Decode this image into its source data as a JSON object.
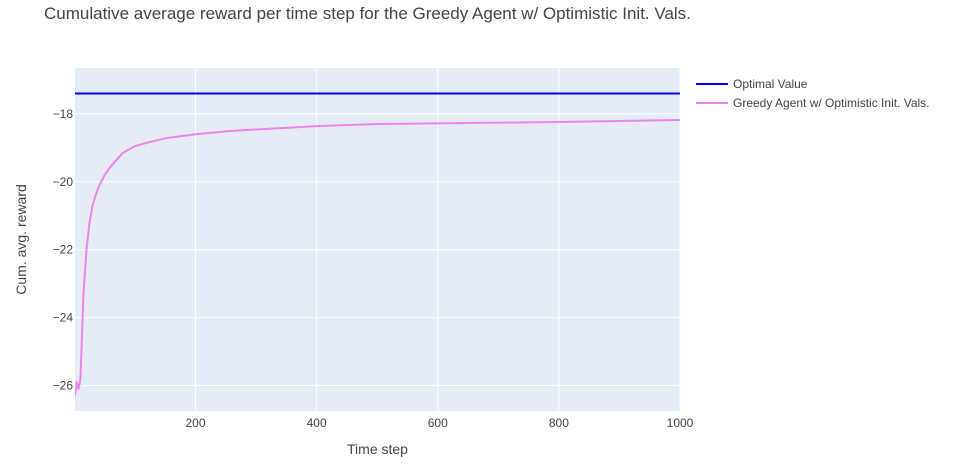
{
  "chart_data": {
    "type": "line",
    "title": "Cumulative average reward per time step for the Greedy Agent w/ Optimistic Init. Vals.",
    "xlabel": "Time step",
    "ylabel": "Cum. avg. reward",
    "xlim": [
      1,
      1000
    ],
    "ylim": [
      -26.75,
      -16.65
    ],
    "x_ticks": [
      200,
      400,
      600,
      800,
      1000
    ],
    "x_tick_labels": [
      "200",
      "400",
      "600",
      "800",
      "1000"
    ],
    "y_ticks": [
      -26,
      -24,
      -22,
      -20,
      -18
    ],
    "y_tick_labels": [
      "−26",
      "−24",
      "−22",
      "−20",
      "−18"
    ],
    "grid": true,
    "legend_position": "right",
    "series": [
      {
        "name": "Optimal Value",
        "color": "#0000ff",
        "x": [
          1,
          1000
        ],
        "y": [
          -17.4,
          -17.4
        ]
      },
      {
        "name": "Greedy Agent w/ Optimistic Init. Vals.",
        "color": "#ee82ee",
        "x": [
          1,
          4,
          7,
          10,
          15,
          20,
          25,
          30,
          35,
          40,
          50,
          60,
          70,
          80,
          90,
          100,
          120,
          150,
          200,
          260,
          300,
          400,
          500,
          600,
          700,
          800,
          900,
          1000
        ],
        "y": [
          -26.3,
          -25.9,
          -26.1,
          -25.8,
          -23.3,
          -22.0,
          -21.2,
          -20.7,
          -20.4,
          -20.15,
          -19.8,
          -19.55,
          -19.35,
          -19.15,
          -19.05,
          -18.95,
          -18.85,
          -18.72,
          -18.6,
          -18.5,
          -18.46,
          -18.36,
          -18.3,
          -18.28,
          -18.26,
          -18.24,
          -18.21,
          -18.18
        ]
      }
    ]
  }
}
